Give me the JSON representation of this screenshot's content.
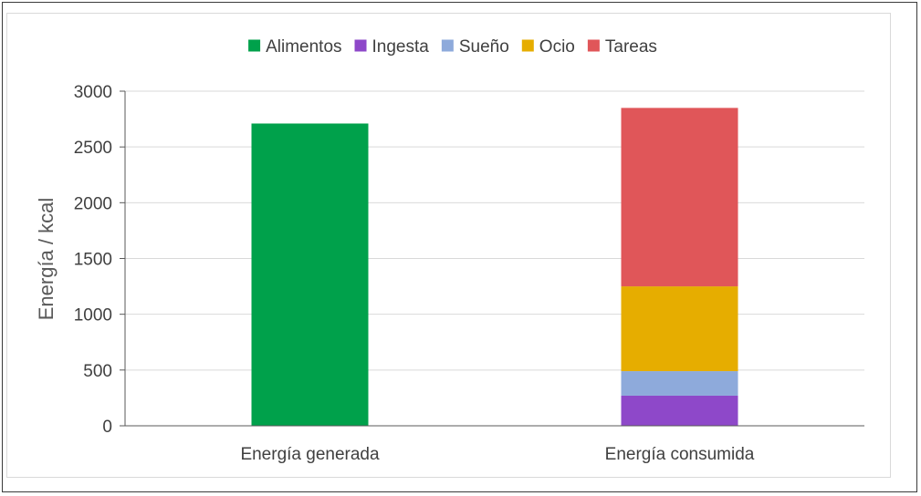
{
  "chart_data": {
    "type": "bar",
    "stacked": true,
    "categories": [
      "Energía generada",
      "Energía consumida"
    ],
    "series": [
      {
        "name": "Alimentos",
        "color": "#00a14b",
        "values": [
          2710,
          0
        ]
      },
      {
        "name": "Ingesta",
        "color": "#8e48c9",
        "values": [
          0,
          270
        ]
      },
      {
        "name": "Sueño",
        "color": "#8eaadb",
        "values": [
          0,
          220
        ]
      },
      {
        "name": "Ocio",
        "color": "#e6ad00",
        "values": [
          0,
          760
        ]
      },
      {
        "name": "Tareas",
        "color": "#e05659",
        "values": [
          0,
          1600
        ]
      }
    ],
    "ylabel": "Energía / kcal",
    "xlabel": "",
    "ylim": [
      0,
      3000
    ],
    "yticks": [
      0,
      500,
      1000,
      1500,
      2000,
      2500,
      3000
    ],
    "grid": true,
    "legend_position": "top"
  }
}
